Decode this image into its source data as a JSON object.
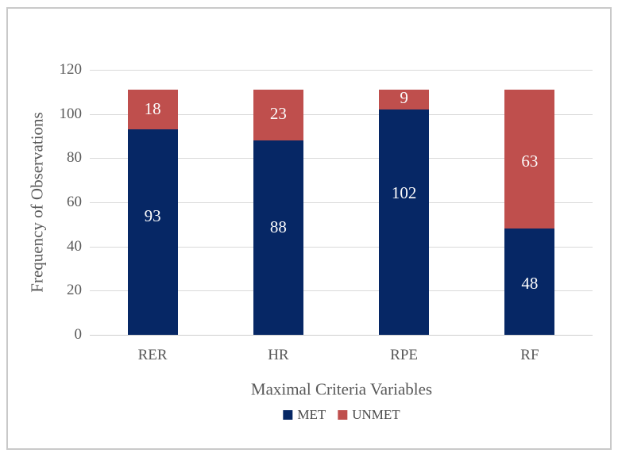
{
  "chart_data": {
    "type": "bar",
    "stacked": true,
    "title": "",
    "xlabel": "Maximal Criteria Variables",
    "ylabel": "Frequency of Observations",
    "categories": [
      "RER",
      "HR",
      "RPE",
      "RF"
    ],
    "series": [
      {
        "name": "MET",
        "color": "#062765",
        "values": [
          93,
          88,
          102,
          48
        ]
      },
      {
        "name": "UNMET",
        "color": "#bf4f4d",
        "values": [
          18,
          23,
          9,
          63
        ]
      }
    ],
    "stack_totals": [
      111,
      111,
      111,
      111
    ],
    "yticks": [
      "0",
      "20",
      "40",
      "60",
      "80",
      "100",
      "120"
    ],
    "ytick_values": [
      0,
      20,
      40,
      60,
      80,
      100,
      120
    ],
    "ylim": [
      0,
      120
    ],
    "grid": "horizontal",
    "legend_position": "bottom",
    "value_labels": "inside-white"
  },
  "colors": {
    "met": "#062765",
    "unmet": "#bf4f4d",
    "gridline": "#d9d9d9",
    "axis_text": "#595959",
    "value_label_text": "#fcfcfc",
    "figure_border": "#c9c9c9",
    "background": "#ffffff"
  }
}
